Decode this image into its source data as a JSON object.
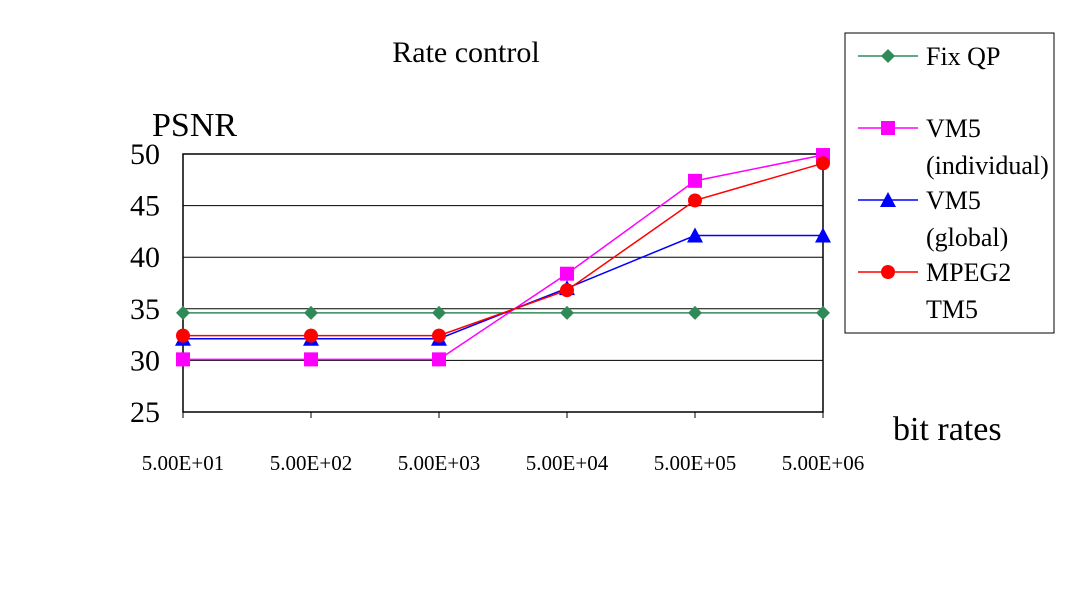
{
  "chart_data": {
    "type": "line",
    "title": "Rate control",
    "ylabel": "PSNR",
    "xlabel": "bit rates",
    "categories": [
      "5.00E+01",
      "5.00E+02",
      "5.00E+03",
      "5.00E+04",
      "5.00E+05",
      "5.00E+06"
    ],
    "ylim": [
      25,
      50
    ],
    "yticks": [
      "50",
      "45",
      "40",
      "35",
      "30",
      "25"
    ],
    "grid": true,
    "legend_position": "top-right",
    "series": [
      {
        "name": "Fix QP",
        "legend_lines": [
          "Fix QP"
        ],
        "color": "#2e8b57",
        "marker": "diamond",
        "values": [
          34.6,
          34.6,
          34.6,
          34.6,
          34.6,
          34.6
        ]
      },
      {
        "name": "VM5 (individual)",
        "legend_lines": [
          "VM5",
          "(individual)"
        ],
        "color": "#ff00ff",
        "marker": "square",
        "values": [
          30.1,
          30.1,
          30.1,
          38.4,
          47.4,
          49.9
        ]
      },
      {
        "name": "VM5 (global)",
        "legend_lines": [
          "VM5",
          "(global)"
        ],
        "color": "#0000ff",
        "marker": "triangle",
        "values": [
          32.1,
          32.1,
          32.1,
          37.0,
          42.1,
          42.1
        ]
      },
      {
        "name": "MPEG2 TM5",
        "legend_lines": [
          "MPEG2",
          "TM5"
        ],
        "color": "#ff0000",
        "marker": "circle",
        "values": [
          32.4,
          32.4,
          32.4,
          36.8,
          45.5,
          49.1
        ]
      }
    ]
  }
}
